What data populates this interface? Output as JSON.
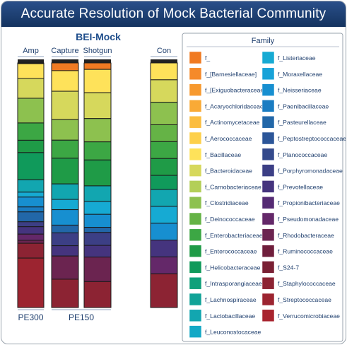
{
  "title": "Accurate Resolution of Mock Bacterial Community",
  "chart_data": {
    "type": "bar",
    "stacked": true,
    "normalized": true,
    "group_title": "BEI-Mock",
    "categories": [
      "Amp",
      "Capture",
      "Shotgun",
      "Con"
    ],
    "run_groups": [
      {
        "label": "PE300",
        "members": [
          "Amp"
        ]
      },
      {
        "label": "PE150",
        "members": [
          "Capture",
          "Shotgun"
        ]
      }
    ],
    "ylim": [
      0,
      1
    ],
    "legend_title": "Family",
    "families": [
      {
        "name": "f_",
        "color": "#f07a22"
      },
      {
        "name": "f_[Barnesiellaceae]",
        "color": "#f58a2a"
      },
      {
        "name": "f_[Exiguobacteraceae",
        "color": "#f7992e"
      },
      {
        "name": "f_Acaryochloridaceae",
        "color": "#f9aa36"
      },
      {
        "name": "f_Actinomycetaceae",
        "color": "#fbbd40"
      },
      {
        "name": "f_Aerococcaceae",
        "color": "#fdd04b"
      },
      {
        "name": "f_Bacillaceae",
        "color": "#fee25a"
      },
      {
        "name": "f_Bacteroidaceae",
        "color": "#d6d85c"
      },
      {
        "name": "f_Carnobacteriaceae",
        "color": "#b3cf58"
      },
      {
        "name": "f_Clostridiaceae",
        "color": "#8dc14f"
      },
      {
        "name": "f_Deinococcaceae",
        "color": "#65b346"
      },
      {
        "name": "f_Enterobacteriaceae",
        "color": "#3ca744"
      },
      {
        "name": "f_Enterococcaceae",
        "color": "#1f9b47"
      },
      {
        "name": "f_Helicobacteraceae",
        "color": "#109a5b"
      },
      {
        "name": "f_Intrasporangiaceae",
        "color": "#10a07a"
      },
      {
        "name": "f_Lachnospiraceae",
        "color": "#11a397"
      },
      {
        "name": "f_Lactobacillaceae",
        "color": "#12a6b0"
      },
      {
        "name": "f_Leuconostocaceae",
        "color": "#14a9c6"
      },
      {
        "name": "f_Listeriaceae",
        "color": "#16aad3"
      },
      {
        "name": "f_Moraxellaceae",
        "color": "#17a2d8"
      },
      {
        "name": "f_Neisseriaceae",
        "color": "#178fd0"
      },
      {
        "name": "f_Paenibacillaceae",
        "color": "#1a7cc2"
      },
      {
        "name": "f_Pasteurellaceae",
        "color": "#2267a8"
      },
      {
        "name": "f_Peptostreptococcaceae",
        "color": "#2c5699"
      },
      {
        "name": "f_Planococcaceae",
        "color": "#344a8c"
      },
      {
        "name": "f_Porphyromonadaceae",
        "color": "#3c3f85"
      },
      {
        "name": "f_Prevotellaceae",
        "color": "#45347e"
      },
      {
        "name": "f_Propionibacteriaceae",
        "color": "#552b74"
      },
      {
        "name": "f_Pseudomonadaceae",
        "color": "#642869"
      },
      {
        "name": "f_Rhodobacteraceae",
        "color": "#6b2450"
      },
      {
        "name": "f_Ruminococcaceae",
        "color": "#6f1e3c"
      },
      {
        "name": "f_S24-7",
        "color": "#7a2034"
      },
      {
        "name": "f_Staphylococcaceae",
        "color": "#8c2333"
      },
      {
        "name": "f_Streptococcaceae",
        "color": "#9c2430"
      },
      {
        "name": "f_Verrucomicrobiaceae",
        "color": "#a8242f"
      }
    ],
    "stacks": [
      {
        "category": "Amp",
        "segments": [
          [
            "f_",
            0.003
          ],
          [
            "f_Bacillaceae",
            0.06
          ],
          [
            "f_Bacteroidaceae",
            0.08
          ],
          [
            "f_Clostridiaceae",
            0.1
          ],
          [
            "f_Enterobacteriaceae",
            0.07
          ],
          [
            "f_Enterococcaceae",
            0.05
          ],
          [
            "f_Helicobacteraceae",
            0.11
          ],
          [
            "f_Lactobacillaceae",
            0.05
          ],
          [
            "f_Listeriaceae",
            0.02
          ],
          [
            "f_Neisseriaceae",
            0.04
          ],
          [
            "f_Paenibacillaceae",
            0.02
          ],
          [
            "f_Pasteurellaceae",
            0.04
          ],
          [
            "f_Porphyromonadaceae",
            0.02
          ],
          [
            "f_Prevotellaceae",
            0.03
          ],
          [
            "f_Pseudomonadaceae",
            0.025
          ],
          [
            "f_Rhodobacteraceae",
            0.012
          ],
          [
            "f_Staphylococcaceae",
            0.06
          ],
          [
            "f_Streptococcaceae",
            0.2
          ]
        ]
      },
      {
        "category": "Capture",
        "segments": [
          [
            "f_",
            0.03
          ],
          [
            "f_Bacillaceae",
            0.08
          ],
          [
            "f_Bacteroidaceae",
            0.11
          ],
          [
            "f_Clostridiaceae",
            0.08
          ],
          [
            "f_Enterobacteriaceae",
            0.07
          ],
          [
            "f_Enterococcaceae",
            0.1
          ],
          [
            "f_Lactobacillaceae",
            0.06
          ],
          [
            "f_Listeriaceae",
            0.04
          ],
          [
            "f_Neisseriaceae",
            0.06
          ],
          [
            "f_Pasteurellaceae",
            0.03
          ],
          [
            "f_Porphyromonadaceae",
            0.05
          ],
          [
            "f_Prevotellaceae",
            0.04
          ],
          [
            "f_Rhodobacteraceae",
            0.09
          ],
          [
            "f_Staphylococcaceae",
            0.11
          ]
        ]
      },
      {
        "category": "Shotgun",
        "segments": [
          [
            "f_",
            0.025
          ],
          [
            "f_Bacillaceae",
            0.09
          ],
          [
            "f_Bacteroidaceae",
            0.1
          ],
          [
            "f_Clostridiaceae",
            0.09
          ],
          [
            "f_Enterobacteriaceae",
            0.07
          ],
          [
            "f_Enterococcaceae",
            0.1
          ],
          [
            "f_Lactobacillaceae",
            0.06
          ],
          [
            "f_Listeriaceae",
            0.05
          ],
          [
            "f_Neisseriaceae",
            0.05
          ],
          [
            "f_Pasteurellaceae",
            0.02
          ],
          [
            "f_Porphyromonadaceae",
            0.05
          ],
          [
            "f_Prevotellaceae",
            0.045
          ],
          [
            "f_Rhodobacteraceae",
            0.095
          ],
          [
            "f_Staphylococcaceae",
            0.1
          ]
        ]
      },
      {
        "category": "Con",
        "segments": [
          [
            "f_Bacillaceae",
            0.06
          ],
          [
            "f_Bacteroidaceae",
            0.08
          ],
          [
            "f_Clostridiaceae",
            0.08
          ],
          [
            "f_Deinococcaceae",
            0.06
          ],
          [
            "f_Enterobacteriaceae",
            0.06
          ],
          [
            "f_Enterococcaceae",
            0.06
          ],
          [
            "f_Helicobacteraceae",
            0.05
          ],
          [
            "f_Lactobacillaceae",
            0.06
          ],
          [
            "f_Listeriaceae",
            0.06
          ],
          [
            "f_Neisseriaceae",
            0.06
          ],
          [
            "f_Prevotellaceae",
            0.06
          ],
          [
            "f_Pseudomonadaceae",
            0.06
          ],
          [
            "f_Staphylococcaceae",
            0.12
          ]
        ]
      }
    ]
  }
}
